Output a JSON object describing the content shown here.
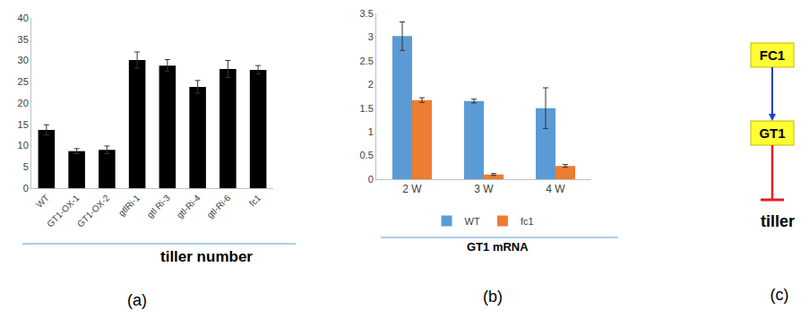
{
  "chart_data": [
    {
      "type": "bar",
      "panel": "(a)",
      "xlabel": "tiller number",
      "categories": [
        "WT",
        "GT1-OX-1",
        "GT1-OX-2",
        "gtlRi-1",
        "gtl Ri-3",
        "gtl-Ri-4",
        "gtl-Ri-6",
        "fc1"
      ],
      "values": [
        13.7,
        8.7,
        9.0,
        30.1,
        28.8,
        23.8,
        28.0,
        27.8
      ],
      "errors": [
        1.2,
        0.6,
        0.9,
        1.9,
        1.4,
        1.5,
        2.0,
        1.0
      ],
      "color": "#000000",
      "ylim": [
        0,
        40
      ],
      "yticks": [
        0,
        5,
        10,
        15,
        20,
        25,
        30,
        35,
        40
      ],
      "grid": false
    },
    {
      "type": "bar",
      "panel": "(b)",
      "xlabel": "GT1 mRNA",
      "categories": [
        "2 W",
        "3 W",
        "4 W"
      ],
      "series": [
        {
          "name": "WT",
          "color": "#5B9BD5",
          "values": [
            3.02,
            1.65,
            1.5
          ],
          "errors": [
            0.3,
            0.04,
            0.43
          ]
        },
        {
          "name": "fc1",
          "color": "#ED7D31",
          "values": [
            1.67,
            0.1,
            0.28
          ],
          "errors": [
            0.05,
            0.02,
            0.03
          ]
        }
      ],
      "ylim": [
        0,
        3.5
      ],
      "yticks": [
        0,
        0.5,
        1,
        1.5,
        2,
        2.5,
        3,
        3.5
      ],
      "grid": false,
      "legend": "bottom"
    }
  ],
  "diagram": {
    "panel": "(c)",
    "nodes": [
      {
        "label": "FC1"
      },
      {
        "label": "GT1"
      },
      {
        "label": "tiller"
      }
    ],
    "edges": [
      {
        "from": 0,
        "to": 1,
        "kind": "activates"
      },
      {
        "from": 1,
        "to": 2,
        "kind": "represses"
      }
    ]
  }
}
